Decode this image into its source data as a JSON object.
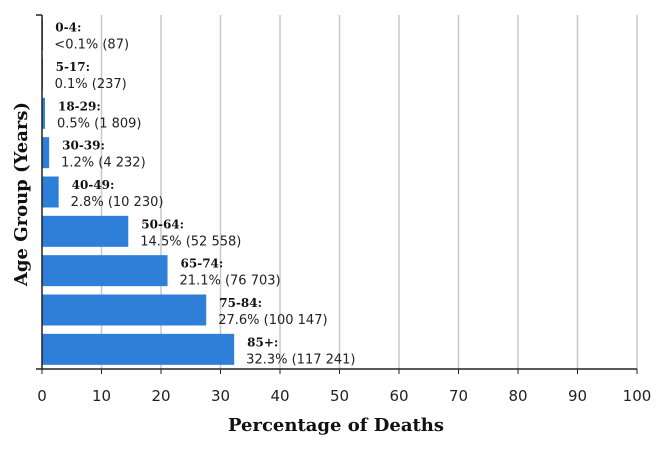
{
  "chart_data": {
    "type": "bar",
    "orientation": "horizontal",
    "xlabel": "Percentage of Deaths",
    "ylabel": "Age Group (Years)",
    "xlim": [
      0,
      100
    ],
    "x_ticks": [
      0,
      10,
      20,
      30,
      40,
      50,
      60,
      70,
      80,
      90,
      100
    ],
    "grid": "vertical",
    "bar_color": "#2e7fd8",
    "categories": [
      "0-4",
      "5-17",
      "18-29",
      "30-39",
      "40-49",
      "50-64",
      "65-74",
      "75-84",
      "85+"
    ],
    "values": [
      0.05,
      0.1,
      0.5,
      1.2,
      2.8,
      14.5,
      21.1,
      27.6,
      32.3
    ],
    "data_labels": [
      {
        "group": "0-4:",
        "value": "<0.1% (87)"
      },
      {
        "group": "5-17:",
        "value": "0.1% (237)"
      },
      {
        "group": "18-29:",
        "value": "0.5% (1 809)"
      },
      {
        "group": "30-39:",
        "value": "1.2% (4 232)"
      },
      {
        "group": "40-49:",
        "value": "2.8% (10 230)"
      },
      {
        "group": "50-64:",
        "value": "14.5% (52 558)"
      },
      {
        "group": "65-74:",
        "value": "21.1% (76 703)"
      },
      {
        "group": "75-84:",
        "value": "27.6% (100 147)"
      },
      {
        "group": "85+:",
        "value": "32.3% (117 241)"
      }
    ]
  }
}
